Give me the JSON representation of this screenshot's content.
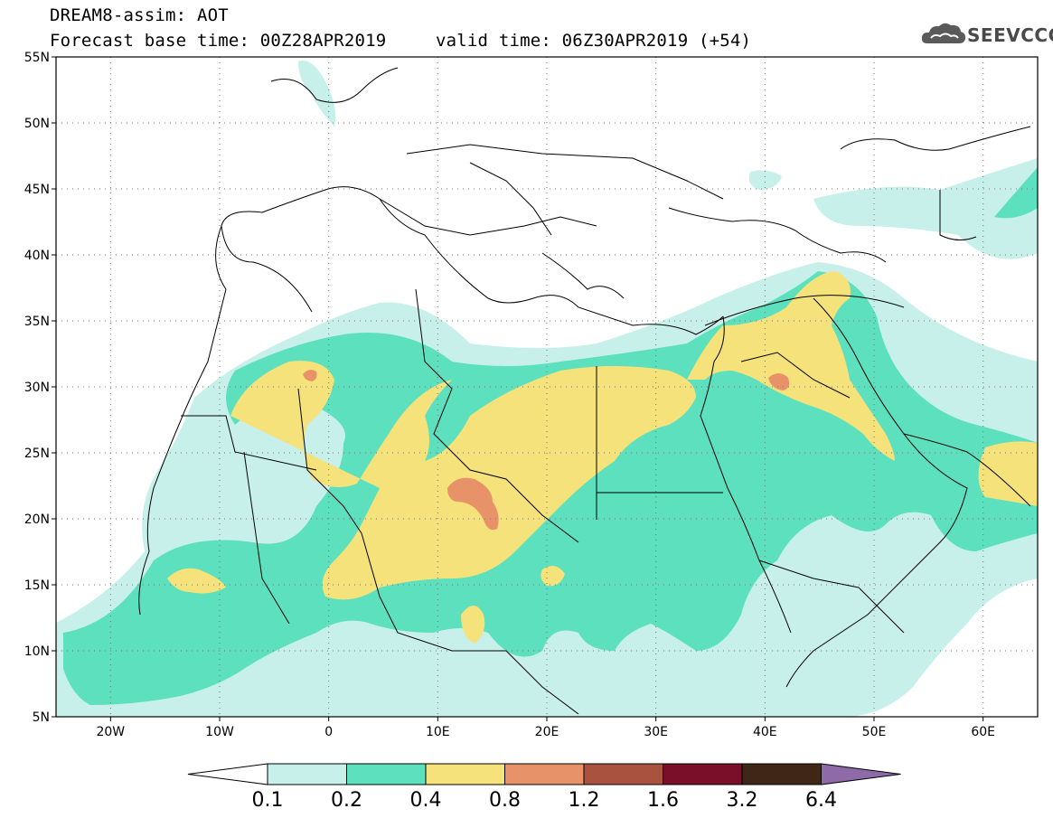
{
  "header": {
    "line1": "DREAM8-assim: AOT",
    "line2": "Forecast base time: 00Z28APR2019",
    "line3": "valid time: 06Z30APR2019 (+54)"
  },
  "logo": {
    "text": "SEEVCCC",
    "icon": "cloud-icon"
  },
  "map": {
    "lon_range": [
      -25,
      65
    ],
    "lat_range": [
      5,
      55
    ],
    "lat_ticks": [
      "55N",
      "50N",
      "45N",
      "40N",
      "35N",
      "30N",
      "25N",
      "20N",
      "15N",
      "10N",
      "5N"
    ],
    "lon_ticks": [
      "20W",
      "10W",
      "0",
      "10E",
      "20E",
      "30E",
      "40E",
      "50E",
      "60E"
    ],
    "grid": "dotted"
  },
  "colorbar": {
    "labels": [
      "0.1",
      "0.2",
      "0.4",
      "0.8",
      "1.2",
      "1.6",
      "3.2",
      "6.4"
    ],
    "colors": [
      "#c8f0ea",
      "#5de0bd",
      "#f5e27a",
      "#e8926a",
      "#a9523f",
      "#7a0f2a",
      "#3f2616",
      "#8f6aa8"
    ],
    "low_color": "#ffffff"
  },
  "palette": {
    "c1": "#c8f0ea",
    "c2": "#5de0bd",
    "c3": "#f5e27a",
    "c4": "#e8926a"
  }
}
